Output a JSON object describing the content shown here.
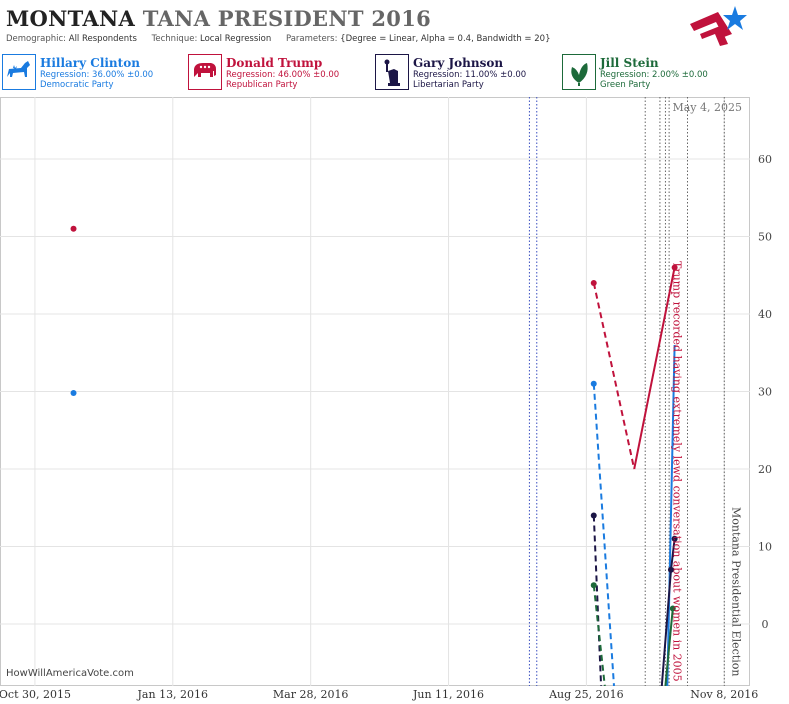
{
  "header": {
    "title_state": "MONTANA",
    "title_race": "TANA PRESIDENT 2016",
    "demographic_label": "Demographic:",
    "demographic_value": "All Respondents",
    "technique_label": "Technique:",
    "technique_value": "Local Regression",
    "parameters_label": "Parameters:",
    "parameters_value": "{Degree = Linear, Alpha = 0.4, Bandwidth = 20}"
  },
  "candidates": [
    {
      "name": "Hillary Clinton",
      "regression": "Regression: 36.00% ±0.00",
      "party": "Democratic Party",
      "color": "#1a7be0",
      "icon": "donkey-icon"
    },
    {
      "name": "Donald Trump",
      "regression": "Regression: 46.00% ±0.00",
      "party": "Republican Party",
      "color": "#c0123c",
      "icon": "elephant-icon"
    },
    {
      "name": "Gary Johnson",
      "regression": "Regression: 11.00% ±0.00",
      "party": "Libertarian Party",
      "color": "#1c1646",
      "icon": "liberty-torch-icon"
    },
    {
      "name": "Jill Stein",
      "regression": "Regression: 2.00% ±0.00",
      "party": "Green Party",
      "color": "#1d6a3a",
      "icon": "leaf-icon"
    }
  ],
  "chart_data": {
    "type": "line",
    "date_label": "May 4, 2025",
    "x_ticks": [
      "Oct 30, 2015",
      "Jan 13, 2016",
      "Mar 28, 2016",
      "Jun 11, 2016",
      "Aug 25, 2016",
      "Nov 8, 2016"
    ],
    "y_ticks": [
      0,
      10,
      20,
      30,
      40,
      50,
      60
    ],
    "ylim": [
      -8,
      68
    ],
    "xlim": [
      "2015-10-11",
      "2016-11-22"
    ],
    "grid": true,
    "series": [
      {
        "name": "Hillary Clinton",
        "color": "#1a7be0",
        "points": [
          [
            "2015-11-20",
            29.8
          ],
          [
            "2016-08-29",
            31
          ]
        ],
        "dashed": [
          [
            "2016-08-29",
            31
          ],
          [
            "2016-09-09",
            -8
          ]
        ],
        "solid": [
          [
            "2016-10-08",
            -8
          ],
          [
            "2016-10-12",
            36
          ]
        ]
      },
      {
        "name": "Donald Trump",
        "color": "#c0123c",
        "points": [
          [
            "2015-11-20",
            51
          ],
          [
            "2016-08-29",
            44
          ],
          [
            "2016-10-12",
            46
          ]
        ],
        "dashed": [
          [
            "2016-08-29",
            44
          ],
          [
            "2016-09-20",
            20
          ]
        ],
        "solid": [
          [
            "2016-09-20",
            20
          ],
          [
            "2016-10-12",
            46
          ]
        ]
      },
      {
        "name": "Gary Johnson",
        "color": "#1c1646",
        "points": [
          [
            "2016-08-29",
            14
          ],
          [
            "2016-10-10",
            7
          ],
          [
            "2016-10-12",
            11
          ]
        ],
        "dashed": [
          [
            "2016-08-29",
            14
          ],
          [
            "2016-09-02",
            -8
          ]
        ],
        "solid": [
          [
            "2016-10-05",
            -8
          ],
          [
            "2016-10-10",
            7
          ],
          [
            "2016-10-12",
            11
          ]
        ]
      },
      {
        "name": "Jill Stein",
        "color": "#1d6a3a",
        "points": [
          [
            "2016-08-29",
            5
          ],
          [
            "2016-10-11",
            2
          ]
        ],
        "dashed": [
          [
            "2016-08-29",
            5
          ],
          [
            "2016-09-04",
            -8
          ]
        ],
        "solid": [
          [
            "2016-10-07",
            -8
          ],
          [
            "2016-10-11",
            2
          ]
        ]
      }
    ],
    "events": [
      {
        "date": "2016-07-25",
        "style": "blue"
      },
      {
        "date": "2016-07-29",
        "style": "blue"
      },
      {
        "date": "2016-09-26",
        "style": "gray"
      },
      {
        "date": "2016-10-04",
        "style": "gray"
      },
      {
        "date": "2016-10-07",
        "style": "gray"
      },
      {
        "date": "2016-10-09",
        "style": "gray"
      },
      {
        "date": "2016-10-19",
        "style": "gray"
      },
      {
        "date": "2016-11-08",
        "style": "gray"
      }
    ],
    "annotations": [
      {
        "text": "Trump recorded having extremely lewd conversation about women in 2005",
        "date": "2016-10-07",
        "color": "#c0123c"
      },
      {
        "text": "Montana Presidential Election",
        "date": "2016-11-08",
        "color": "#444444"
      }
    ]
  },
  "footer": {
    "source": "HowWillAmericaVote.com"
  }
}
